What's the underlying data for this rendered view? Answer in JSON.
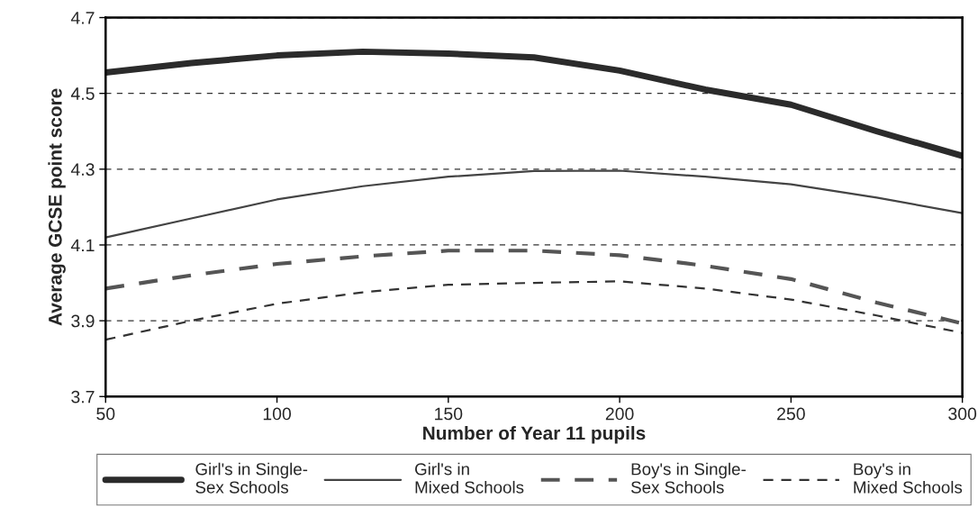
{
  "chart_data": {
    "type": "line",
    "xlabel": "Number of Year 11 pupils",
    "ylabel": "Average GCSE point score",
    "x": [
      50,
      75,
      100,
      125,
      150,
      175,
      200,
      225,
      250,
      275,
      300
    ],
    "series": [
      {
        "name": "Girl's in Single-\nSex Schools",
        "color": "#2b2b2b",
        "line_style": "solid",
        "values": [
          4.555,
          4.58,
          4.6,
          4.61,
          4.605,
          4.595,
          4.56,
          4.51,
          4.47,
          4.4,
          4.335
        ]
      },
      {
        "name": "Girl's in\nMixed Schools",
        "color": "#444444",
        "line_style": "solid",
        "values": [
          4.12,
          4.17,
          4.22,
          4.255,
          4.28,
          4.295,
          4.296,
          4.28,
          4.26,
          4.225,
          4.184
        ]
      },
      {
        "name": "Boy's in Single-\nSex Schools",
        "color": "#555555",
        "line_style": "dashed",
        "values": [
          3.985,
          4.02,
          4.05,
          4.07,
          4.085,
          4.085,
          4.073,
          4.045,
          4.01,
          3.948,
          3.893
        ]
      },
      {
        "name": "Boy's in\nMixed Schools",
        "color": "#333333",
        "line_style": "dashed",
        "values": [
          3.85,
          3.9,
          3.945,
          3.975,
          3.995,
          4.0,
          4.004,
          3.985,
          3.956,
          3.914,
          3.868
        ]
      }
    ],
    "xlim": [
      50,
      300
    ],
    "xticks": [
      50,
      100,
      150,
      200,
      250,
      300
    ],
    "ylim": [
      3.7,
      4.7
    ],
    "yticks": [
      3.7,
      3.9,
      4.1,
      4.3,
      4.5,
      4.7
    ],
    "grid": "y",
    "legend": "bottom",
    "marker": "none"
  }
}
